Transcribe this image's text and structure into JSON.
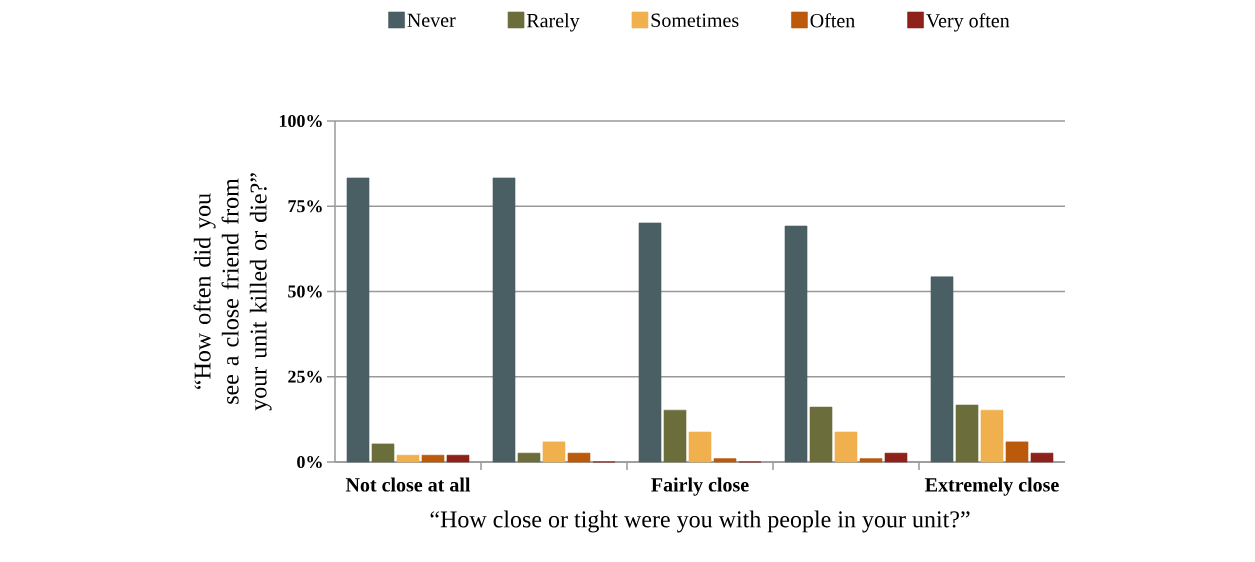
{
  "chart_data": {
    "type": "bar",
    "categories": [
      "Not close at all",
      null,
      "Fairly close",
      null,
      "Extremely close"
    ],
    "xlabel": "“How close or tight were you with people in your unit?”",
    "ylabel": "“How often did you see a close friend from your unit killed or die?”",
    "series": [
      {
        "name": "Never",
        "color": "#4a5f63",
        "values": [
          83.3,
          83.3,
          70.1,
          69.2,
          54.3
        ]
      },
      {
        "name": "Rarely",
        "color": "#6b6e3a",
        "values": [
          5.3,
          2.6,
          15.2,
          16.1,
          16.7
        ]
      },
      {
        "name": "Sometimes",
        "color": "#f0b04e",
        "values": [
          2,
          5.9,
          8.8,
          8.8,
          15.2
        ]
      },
      {
        "name": "Often",
        "color": "#bb5a0a",
        "values": [
          2,
          2.6,
          1,
          1,
          5.9
        ]
      },
      {
        "name": "Very often",
        "color": "#8e2119",
        "values": [
          2,
          0,
          0,
          2.6,
          2.6
        ]
      }
    ],
    "ylim": [
      0,
      100
    ],
    "yticks": [
      {
        "value": 0,
        "label": "0%"
      },
      {
        "value": 25,
        "label": "25%"
      },
      {
        "value": 50,
        "label": "50%"
      },
      {
        "value": 75,
        "label": "75%"
      },
      {
        "value": 100,
        "label": "100%"
      }
    ],
    "grid": "y",
    "legend": "top"
  }
}
